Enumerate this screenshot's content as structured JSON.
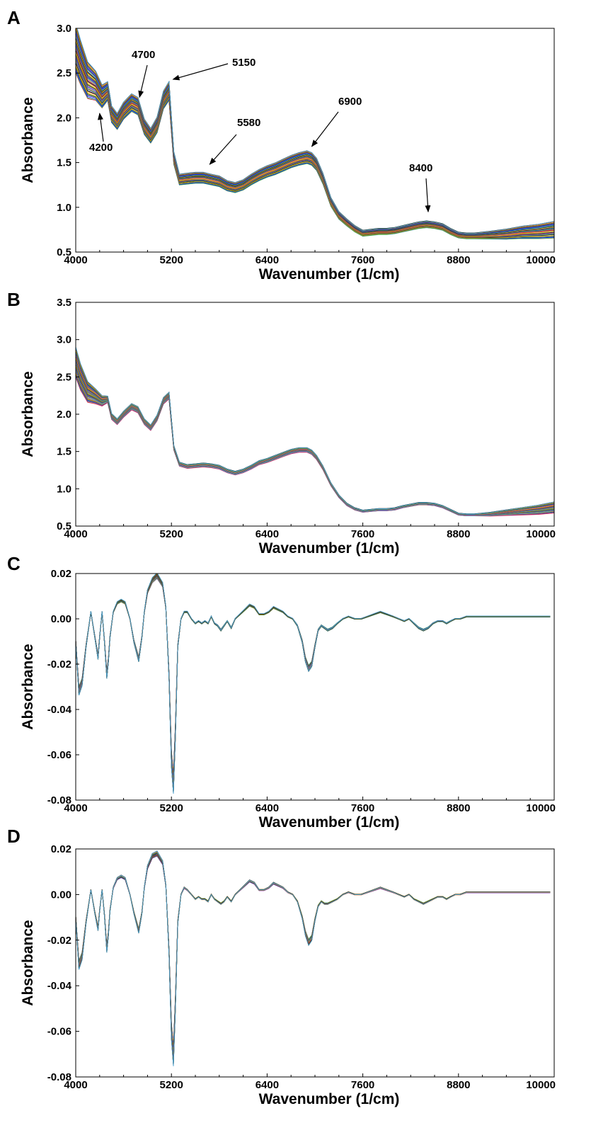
{
  "chart_data": [
    {
      "panel": "A",
      "type": "line",
      "xlabel": "Wavenumber (1/cm)",
      "ylabel": "Absorbance",
      "xlim": [
        4000,
        10000
      ],
      "ylim": [
        0.5,
        3.0
      ],
      "xticks": [
        "4000",
        "5200",
        "6400",
        "7600",
        "8800",
        "10000"
      ],
      "yticks": [
        "0.5",
        "1.0",
        "1.5",
        "2.0",
        "2.5",
        "3.0"
      ],
      "grid": false,
      "legend": "none",
      "colors": [
        "#e6194b",
        "#3cb44b",
        "#0022ee",
        "#911eb4",
        "#008080",
        "#7a3d00",
        "#b0b000",
        "#f58231",
        "#000000",
        "#46a0d0"
      ],
      "annotations": [
        {
          "text": "4700",
          "x": 4800,
          "y": 2.23
        },
        {
          "text": "5150",
          "x": 5220,
          "y": 2.43
        },
        {
          "text": "4200",
          "x": 4300,
          "y": 2.05
        },
        {
          "text": "5580",
          "x": 5680,
          "y": 1.48
        },
        {
          "text": "6900",
          "x": 6960,
          "y": 1.68
        },
        {
          "text": "8400",
          "x": 8420,
          "y": 0.95
        }
      ],
      "series": [
        {
          "x": [
            4000,
            4060,
            4150,
            4250,
            4330,
            4400,
            4450,
            4520,
            4600,
            4700,
            4780,
            4860,
            4940,
            5020,
            5100,
            5170,
            5230,
            5300,
            5400,
            5500,
            5600,
            5700,
            5800,
            5900,
            6000,
            6100,
            6200,
            6300,
            6400,
            6500,
            6600,
            6700,
            6800,
            6900,
            6960,
            7020,
            7100,
            7200,
            7300,
            7400,
            7500,
            7600,
            7700,
            7800,
            7900,
            8000,
            8100,
            8200,
            8300,
            8400,
            8500,
            8600,
            8700,
            8800,
            8900,
            9000,
            9200,
            9400,
            9600,
            9800,
            10000
          ],
          "y": [
            2.78,
            2.62,
            2.42,
            2.36,
            2.24,
            2.3,
            2.04,
            1.96,
            2.08,
            2.17,
            2.13,
            1.9,
            1.8,
            1.92,
            2.2,
            2.3,
            1.55,
            1.31,
            1.32,
            1.33,
            1.33,
            1.31,
            1.29,
            1.24,
            1.22,
            1.25,
            1.31,
            1.36,
            1.4,
            1.43,
            1.47,
            1.51,
            1.54,
            1.56,
            1.54,
            1.48,
            1.32,
            1.06,
            0.91,
            0.83,
            0.76,
            0.71,
            0.72,
            0.73,
            0.73,
            0.74,
            0.76,
            0.78,
            0.8,
            0.81,
            0.8,
            0.78,
            0.73,
            0.69,
            0.68,
            0.68,
            0.69,
            0.7,
            0.72,
            0.73,
            0.75
          ]
        }
      ]
    },
    {
      "panel": "B",
      "type": "line",
      "xlabel": "Wavenumber (1/cm)",
      "ylabel": "Absorbance",
      "xlim": [
        4000,
        10000
      ],
      "ylim": [
        0.5,
        3.5
      ],
      "xticks": [
        "4000",
        "5200",
        "6400",
        "7600",
        "8800",
        "10000"
      ],
      "yticks": [
        "0.5",
        "1.0",
        "1.5",
        "2.0",
        "2.5",
        "3.0",
        "3.5"
      ],
      "grid": false,
      "legend": "none",
      "series": [
        {
          "x": [
            4000,
            4060,
            4150,
            4250,
            4330,
            4400,
            4450,
            4520,
            4600,
            4700,
            4780,
            4860,
            4940,
            5020,
            5100,
            5170,
            5230,
            5300,
            5400,
            5500,
            5600,
            5700,
            5800,
            5900,
            6000,
            6100,
            6200,
            6300,
            6400,
            6500,
            6600,
            6700,
            6800,
            6900,
            6960,
            7020,
            7100,
            7200,
            7300,
            7400,
            7500,
            7600,
            7700,
            7800,
            7900,
            8000,
            8100,
            8200,
            8300,
            8400,
            8500,
            8600,
            8700,
            8800,
            8900,
            9000,
            9200,
            9400,
            9600,
            9800,
            10000
          ],
          "y": [
            2.7,
            2.5,
            2.3,
            2.24,
            2.18,
            2.2,
            1.97,
            1.9,
            2.0,
            2.1,
            2.06,
            1.9,
            1.82,
            1.95,
            2.18,
            2.25,
            1.55,
            1.33,
            1.3,
            1.31,
            1.32,
            1.31,
            1.29,
            1.24,
            1.21,
            1.24,
            1.29,
            1.35,
            1.38,
            1.42,
            1.46,
            1.5,
            1.52,
            1.52,
            1.49,
            1.42,
            1.28,
            1.06,
            0.9,
            0.79,
            0.73,
            0.7,
            0.71,
            0.72,
            0.72,
            0.73,
            0.76,
            0.78,
            0.8,
            0.8,
            0.79,
            0.76,
            0.71,
            0.66,
            0.65,
            0.65,
            0.66,
            0.68,
            0.7,
            0.72,
            0.75
          ]
        }
      ]
    },
    {
      "panel": "C",
      "type": "line",
      "xlabel": "Wavenumber (1/cm)",
      "ylabel": "Absorbance",
      "xlim": [
        4000,
        10000
      ],
      "ylim": [
        -0.08,
        0.02
      ],
      "xticks": [
        "4000",
        "5200",
        "6400",
        "7600",
        "8800",
        "10000"
      ],
      "yticks": [
        "-0.08",
        "-0.06",
        "-0.04",
        "-0.02",
        "0.00",
        "0.02"
      ],
      "grid": false,
      "legend": "none",
      "series": [
        {
          "x": [
            4000,
            4040,
            4080,
            4130,
            4190,
            4240,
            4280,
            4300,
            4330,
            4360,
            4390,
            4410,
            4430,
            4470,
            4520,
            4570,
            4620,
            4680,
            4730,
            4790,
            4830,
            4860,
            4900,
            4960,
            5020,
            5090,
            5130,
            5170,
            5200,
            5225,
            5250,
            5280,
            5320,
            5360,
            5400,
            5450,
            5500,
            5540,
            5580,
            5620,
            5660,
            5700,
            5740,
            5780,
            5820,
            5860,
            5900,
            5950,
            6000,
            6060,
            6120,
            6180,
            6240,
            6300,
            6360,
            6420,
            6480,
            6540,
            6600,
            6660,
            6720,
            6780,
            6840,
            6880,
            6920,
            6960,
            7000,
            7040,
            7080,
            7120,
            7160,
            7220,
            7280,
            7350,
            7420,
            7500,
            7580,
            7660,
            7740,
            7820,
            7900,
            7980,
            8050,
            8120,
            8180,
            8240,
            8300,
            8360,
            8420,
            8480,
            8540,
            8600,
            8650,
            8700,
            8760,
            8820,
            8900,
            9000,
            9200,
            9400,
            9600,
            9800,
            9950
          ],
          "y": [
            -0.01,
            -0.032,
            -0.028,
            -0.012,
            0.003,
            -0.008,
            -0.017,
            -0.008,
            0.003,
            -0.01,
            -0.025,
            -0.018,
            -0.008,
            0.003,
            0.007,
            0.008,
            0.007,
            0.0,
            -0.01,
            -0.018,
            -0.008,
            0.003,
            0.012,
            0.017,
            0.019,
            0.015,
            0.005,
            -0.025,
            -0.062,
            -0.073,
            -0.05,
            -0.012,
            0.0,
            0.003,
            0.003,
            0.0,
            -0.002,
            -0.001,
            -0.002,
            -0.001,
            -0.002,
            0.001,
            -0.002,
            -0.003,
            -0.005,
            -0.003,
            -0.001,
            -0.004,
            0.0,
            0.002,
            0.004,
            0.006,
            0.005,
            0.002,
            0.002,
            0.003,
            0.005,
            0.004,
            0.003,
            0.001,
            0.0,
            -0.003,
            -0.01,
            -0.018,
            -0.022,
            -0.02,
            -0.012,
            -0.005,
            -0.003,
            -0.004,
            -0.005,
            -0.004,
            -0.002,
            0.0,
            0.001,
            0.0,
            0.0,
            0.001,
            0.002,
            0.003,
            0.002,
            0.001,
            0.0,
            -0.001,
            0.0,
            -0.002,
            -0.004,
            -0.005,
            -0.004,
            -0.002,
            -0.001,
            -0.001,
            -0.002,
            -0.001,
            0.0,
            0.0,
            0.001,
            0.001,
            0.001,
            0.001,
            0.001,
            0.001,
            0.001
          ]
        }
      ]
    },
    {
      "panel": "D",
      "type": "line",
      "xlabel": "Wavenumber (1/cm)",
      "ylabel": "Absorbance",
      "xlim": [
        4000,
        10000
      ],
      "ylim": [
        -0.08,
        0.02
      ],
      "xticks": [
        "4000",
        "5200",
        "6400",
        "7600",
        "8800",
        "10000"
      ],
      "yticks": [
        "-0.08",
        "-0.06",
        "-0.04",
        "-0.02",
        "0.00",
        "0.02"
      ],
      "grid": false,
      "legend": "none",
      "series": [
        {
          "x": [
            4000,
            4040,
            4080,
            4130,
            4190,
            4240,
            4280,
            4300,
            4330,
            4360,
            4390,
            4410,
            4430,
            4470,
            4520,
            4570,
            4620,
            4680,
            4730,
            4790,
            4830,
            4860,
            4900,
            4960,
            5020,
            5090,
            5130,
            5170,
            5200,
            5225,
            5250,
            5280,
            5320,
            5360,
            5400,
            5450,
            5500,
            5540,
            5580,
            5620,
            5660,
            5700,
            5740,
            5780,
            5820,
            5860,
            5900,
            5950,
            6000,
            6060,
            6120,
            6180,
            6240,
            6300,
            6360,
            6420,
            6480,
            6540,
            6600,
            6660,
            6720,
            6780,
            6840,
            6880,
            6920,
            6960,
            7000,
            7040,
            7080,
            7120,
            7160,
            7220,
            7280,
            7350,
            7420,
            7500,
            7580,
            7660,
            7740,
            7820,
            7900,
            7980,
            8050,
            8120,
            8180,
            8240,
            8300,
            8360,
            8420,
            8480,
            8540,
            8600,
            8650,
            8700,
            8760,
            8820,
            8900,
            9000,
            9200,
            9400,
            9600,
            9800,
            9950
          ],
          "y": [
            -0.01,
            -0.031,
            -0.027,
            -0.012,
            0.002,
            -0.008,
            -0.015,
            -0.007,
            0.002,
            -0.009,
            -0.024,
            -0.017,
            -0.007,
            0.003,
            0.007,
            0.008,
            0.007,
            0.0,
            -0.008,
            -0.016,
            -0.008,
            0.003,
            0.012,
            0.017,
            0.018,
            0.014,
            0.004,
            -0.025,
            -0.06,
            -0.071,
            -0.048,
            -0.012,
            0.0,
            0.003,
            0.002,
            0.0,
            -0.002,
            -0.001,
            -0.002,
            -0.002,
            -0.003,
            0.0,
            -0.002,
            -0.003,
            -0.004,
            -0.003,
            -0.001,
            -0.003,
            0.0,
            0.002,
            0.004,
            0.006,
            0.005,
            0.002,
            0.002,
            0.003,
            0.005,
            0.004,
            0.003,
            0.001,
            0.0,
            -0.003,
            -0.01,
            -0.017,
            -0.021,
            -0.019,
            -0.011,
            -0.005,
            -0.003,
            -0.004,
            -0.004,
            -0.003,
            -0.002,
            0.0,
            0.001,
            0.0,
            0.0,
            0.001,
            0.002,
            0.003,
            0.002,
            0.001,
            0.0,
            -0.001,
            0.0,
            -0.002,
            -0.003,
            -0.004,
            -0.003,
            -0.002,
            -0.001,
            -0.001,
            -0.002,
            -0.001,
            0.0,
            0.0,
            0.001,
            0.001,
            0.001,
            0.001,
            0.001,
            0.001,
            0.001
          ]
        }
      ]
    }
  ]
}
